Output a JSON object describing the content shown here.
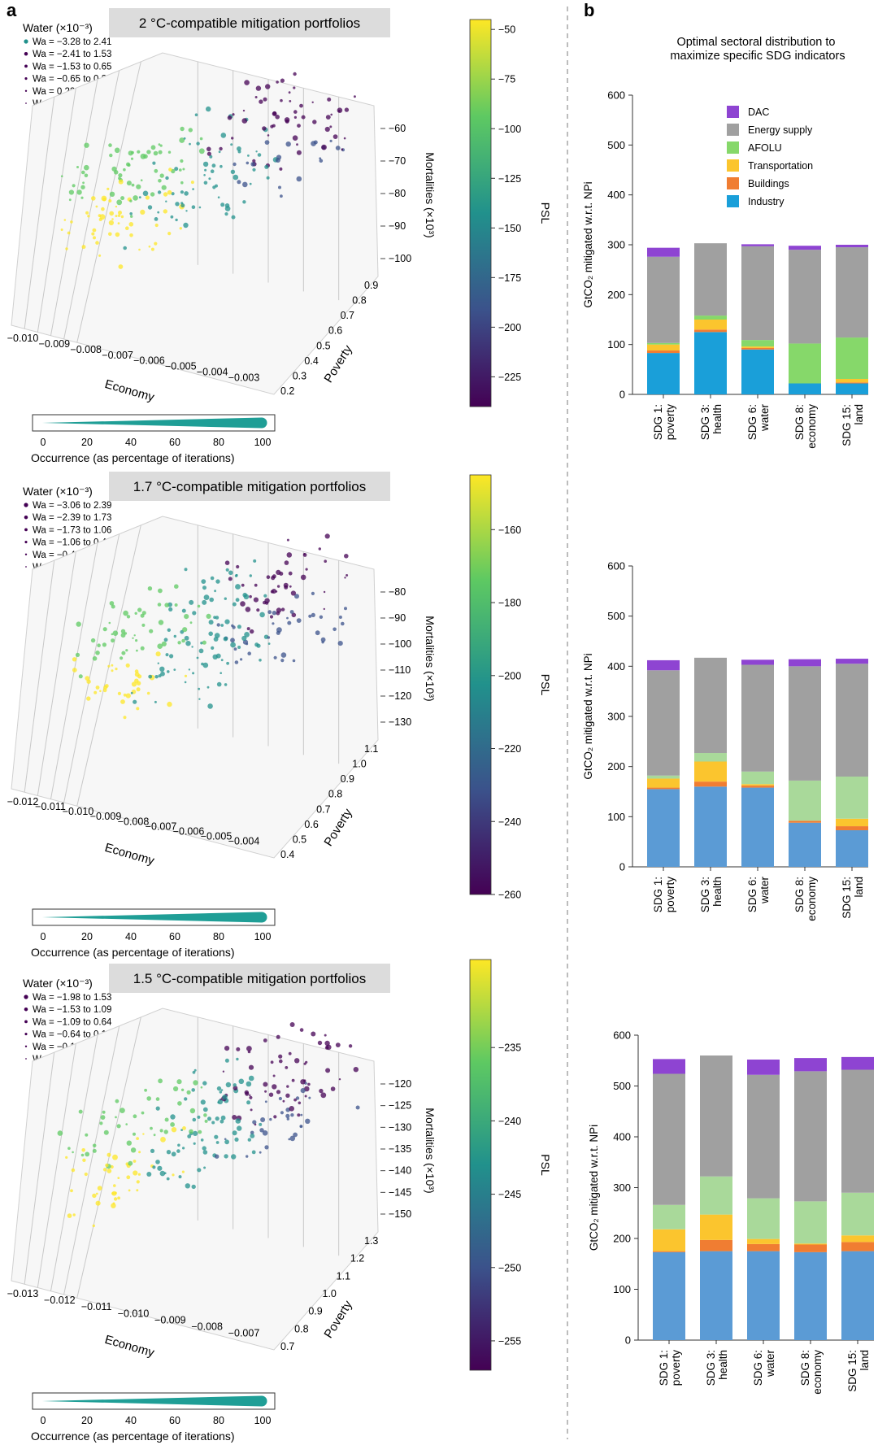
{
  "panel_a_label": "a",
  "panel_b_label": "b",
  "panel_b_title_lines": [
    "Optimal sectoral distribution to",
    "maximize specific SDG indicators"
  ],
  "colors": {
    "DAC": "#8e44d2",
    "Energy supply": "#a0a0a0",
    "AFOLU": "#86d86a",
    "Transportation": "#fbc52e",
    "Buildings": "#f07d32",
    "Industry": "#1a9fd9",
    "divider": "#999999",
    "header_box": "#dcdcdc",
    "occurrence_fill": "#1f9e96"
  },
  "chart_data": [
    {
      "type": "scatter",
      "title": "2 °C-compatible mitigation portfolios",
      "xlabel": "Economy",
      "ylabel": "Poverty",
      "zlabel": "Mortalities (×10³)",
      "colorbar_label": "PSL",
      "xticks": [
        "−0.010",
        "−0.009",
        "−0.008",
        "−0.007",
        "−0.006",
        "−0.005",
        "−0.004",
        "−0.003"
      ],
      "yticks": [
        "0.2",
        "0.3",
        "0.4",
        "0.5",
        "0.6",
        "0.7",
        "0.8",
        "0.9"
      ],
      "zticks": [
        "−100",
        "−90",
        "−80",
        "−70",
        "−60"
      ],
      "colorbar_ticks": [
        "−50",
        "−75",
        "−100",
        "−125",
        "−150",
        "−175",
        "−200",
        "−225"
      ],
      "colorbar_range": [
        -240,
        -45
      ],
      "legend_title": "Water (×10⁻³)",
      "legend_entries": [
        "Wa = −3.28 to 2.41",
        "Wa = −2.41 to 1.53",
        "Wa = −1.53 to 0.65",
        "Wa = −0.65 to 0.22",
        "Wa = 0.22 to 1.10",
        "Wa = 1.10 to 1.98"
      ],
      "occurrence_ticks": [
        "0",
        "20",
        "40",
        "60",
        "80",
        "100"
      ],
      "occurrence_label": "Occurrence (as percentage of iterations)"
    },
    {
      "type": "scatter",
      "title": "1.7 °C-compatible mitigation portfolios",
      "xlabel": "Economy",
      "ylabel": "Poverty",
      "zlabel": "Mortalities (×10³)",
      "colorbar_label": "PSL",
      "xticks": [
        "−0.012",
        "−0.011",
        "−0.010",
        "−0.009",
        "−0.008",
        "−0.007",
        "−0.006",
        "−0.005",
        "−0.004"
      ],
      "yticks": [
        "0.4",
        "0.5",
        "0.6",
        "0.7",
        "0.8",
        "0.9",
        "1.0",
        "1.1"
      ],
      "zticks": [
        "−130",
        "−120",
        "−110",
        "−100",
        "−90",
        "−80"
      ],
      "colorbar_ticks": [
        "−160",
        "−180",
        "−200",
        "−220",
        "−240",
        "−260"
      ],
      "colorbar_range": [
        -260,
        -145
      ],
      "legend_title": "Water (×10⁻³)",
      "legend_entries": [
        "Wa = −3.06 to 2.39",
        "Wa = −2.39 to 1.73",
        "Wa = −1.73 to 1.06",
        "Wa = −1.06 to 0.40",
        "Wa = −0.40 to 0.27",
        "Wa = 0.27 to 0.94"
      ],
      "occurrence_ticks": [
        "0",
        "20",
        "40",
        "60",
        "80",
        "100"
      ],
      "occurrence_label": "Occurrence (as percentage of iterations)"
    },
    {
      "type": "scatter",
      "title": "1.5 °C-compatible mitigation portfolios",
      "xlabel": "Economy",
      "ylabel": "Poverty",
      "zlabel": "Mortalities (×10³)",
      "colorbar_label": "PSL",
      "xticks": [
        "−0.013",
        "−0.012",
        "−0.011",
        "−0.010",
        "−0.009",
        "−0.008",
        "−0.007"
      ],
      "yticks": [
        "0.7",
        "0.8",
        "0.9",
        "1.0",
        "1.1",
        "1.2",
        "1.3"
      ],
      "zticks": [
        "−150",
        "−145",
        "−140",
        "−135",
        "−130",
        "−125",
        "−120"
      ],
      "colorbar_ticks": [
        "−235",
        "−240",
        "−245",
        "−250",
        "−255"
      ],
      "colorbar_range": [
        -257,
        -229
      ],
      "legend_title": "Water (×10⁻³)",
      "legend_entries": [
        "Wa = −1.98 to 1.53",
        "Wa = −1.53 to 1.09",
        "Wa = −1.09 to 0.64",
        "Wa = −0.64 to 0.19",
        "Wa = −0.19 to 0.26",
        "Wa = 0.26 to 0.71"
      ],
      "occurrence_ticks": [
        "0",
        "20",
        "40",
        "60",
        "80",
        "100"
      ],
      "occurrence_label": "Occurrence (as percentage of iterations)"
    },
    {
      "type": "bar",
      "stacked": true,
      "ylabel": "GtCO₂ mitigated w.r.t. NPi",
      "ylim": [
        0,
        600
      ],
      "yticks": [
        "0",
        "100",
        "200",
        "300",
        "400",
        "500",
        "600"
      ],
      "categories": [
        "SDG 1:\npoverty",
        "SDG 3:\nhealth",
        "SDG 6:\nwater",
        "SDG 8:\neconomy",
        "SDG 15:\nland"
      ],
      "legend": [
        "DAC",
        "Energy supply",
        "AFOLU",
        "Transportation",
        "Buildings",
        "Industry"
      ],
      "series": [
        {
          "name": "Industry",
          "values": [
            83,
            125,
            90,
            22,
            22
          ]
        },
        {
          "name": "Buildings",
          "values": [
            5,
            5,
            3,
            0,
            2
          ]
        },
        {
          "name": "Transportation",
          "values": [
            12,
            20,
            3,
            0,
            7
          ]
        },
        {
          "name": "AFOLU",
          "values": [
            3,
            8,
            13,
            80,
            83
          ]
        },
        {
          "name": "Energy supply",
          "values": [
            173,
            145,
            188,
            188,
            181
          ]
        },
        {
          "name": "DAC",
          "values": [
            18,
            0,
            4,
            8,
            5
          ]
        }
      ]
    },
    {
      "type": "bar",
      "stacked": true,
      "ylabel": "GtCO₂ mitigated w.r.t. NPi",
      "ylim": [
        0,
        600
      ],
      "yticks": [
        "0",
        "100",
        "200",
        "300",
        "400",
        "500",
        "600"
      ],
      "categories": [
        "SDG 1:\npoverty",
        "SDG 3:\nhealth",
        "SDG 6:\nwater",
        "SDG 8:\neconomy",
        "SDG 15:\nland"
      ],
      "series": [
        {
          "name": "Industry",
          "values": [
            155,
            160,
            158,
            88,
            73
          ]
        },
        {
          "name": "Buildings",
          "values": [
            3,
            10,
            4,
            4,
            8
          ]
        },
        {
          "name": "Transportation",
          "values": [
            18,
            40,
            3,
            0,
            15
          ]
        },
        {
          "name": "AFOLU",
          "values": [
            6,
            17,
            25,
            80,
            84
          ]
        },
        {
          "name": "Energy supply",
          "values": [
            210,
            190,
            213,
            228,
            225
          ]
        },
        {
          "name": "DAC",
          "values": [
            20,
            0,
            10,
            14,
            10
          ]
        }
      ]
    },
    {
      "type": "bar",
      "stacked": true,
      "ylabel": "GtCO₂ mitigated w.r.t. NPi",
      "ylim": [
        0,
        600
      ],
      "yticks": [
        "0",
        "100",
        "200",
        "300",
        "400",
        "500",
        "600"
      ],
      "categories": [
        "SDG 1:\npoverty",
        "SDG 3:\nhealth",
        "SDG 6:\nwater",
        "SDG 8:\neconomy",
        "SDG 15:\nland"
      ],
      "series": [
        {
          "name": "Industry",
          "values": [
            173,
            175,
            175,
            173,
            175
          ]
        },
        {
          "name": "Buildings",
          "values": [
            2,
            22,
            14,
            15,
            18
          ]
        },
        {
          "name": "Transportation",
          "values": [
            43,
            50,
            10,
            2,
            13
          ]
        },
        {
          "name": "AFOLU",
          "values": [
            48,
            75,
            80,
            83,
            84
          ]
        },
        {
          "name": "Energy supply",
          "values": [
            258,
            238,
            243,
            256,
            242
          ]
        },
        {
          "name": "DAC",
          "values": [
            29,
            0,
            30,
            26,
            25
          ]
        }
      ]
    }
  ]
}
